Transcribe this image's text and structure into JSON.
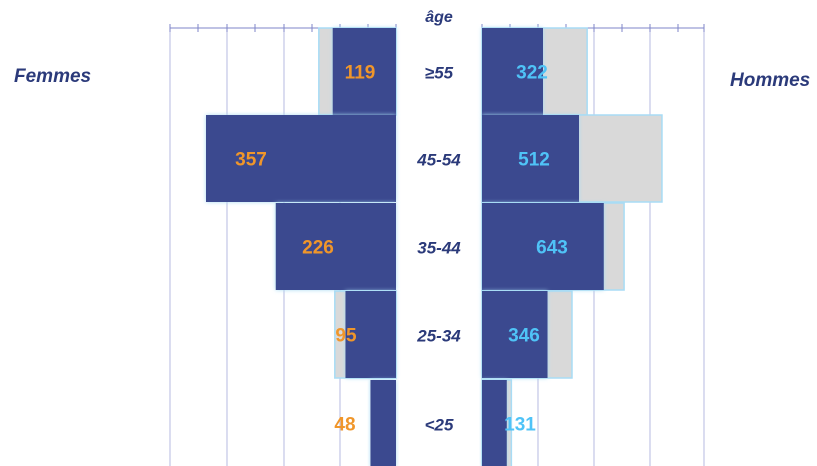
{
  "chart_data": {
    "type": "bar",
    "subtype": "population-pyramid",
    "age_header": "âge",
    "categories": [
      "≥55",
      "45-54",
      "35-44",
      "25-34",
      "<25"
    ],
    "series": [
      {
        "name": "Femmes",
        "values": [
          119,
          357,
          226,
          95,
          48
        ]
      },
      {
        "name": "Hommes",
        "values": [
          322,
          512,
          643,
          346,
          131
        ]
      }
    ],
    "reference_series_unlabeled": {
      "Femmes": [
        145,
        357,
        226,
        115,
        48
      ],
      "Hommes": [
        555,
        950,
        750,
        475,
        155
      ]
    },
    "grid": true,
    "colors": {
      "bar": "#3b4a8f",
      "bar_glow": "#a8dcf5",
      "reference_bar": "#d9d9d9",
      "femmes_value": "#f0962a",
      "hommes_value": "#4fc3f7",
      "category_text": "#2b3a7a",
      "axis": "#7f86c9"
    }
  }
}
